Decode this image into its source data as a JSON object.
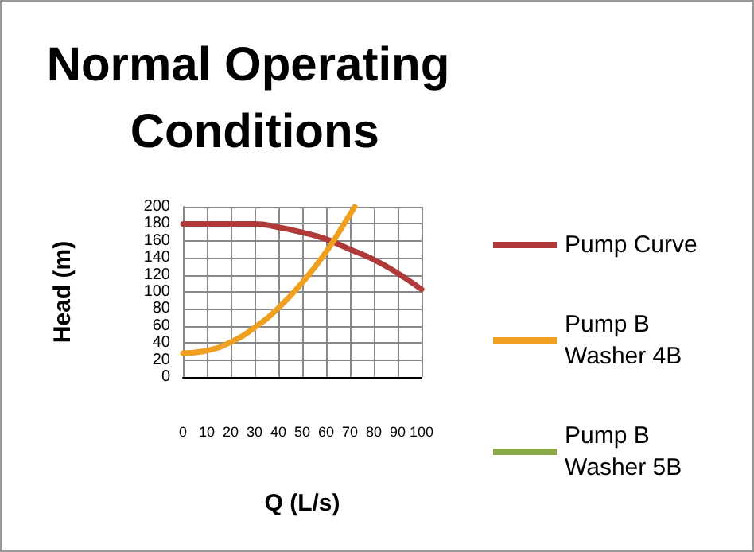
{
  "chart_data": {
    "type": "line",
    "title": "Normal Operating Conditions",
    "xlabel": "Q (L/s)",
    "ylabel": "Head (m)",
    "x": [
      0,
      10,
      20,
      30,
      40,
      50,
      60,
      70,
      80,
      90,
      100
    ],
    "series": [
      {
        "name": "Pump Curve",
        "color": "#b03a3a",
        "values": [
          180,
          180,
          180,
          180,
          176,
          170,
          162,
          150,
          138,
          122,
          103
        ]
      },
      {
        "name": "Pump B Washer 4B",
        "color": "#f0a020",
        "x": [
          0,
          10,
          20,
          30,
          40,
          50,
          60,
          70,
          72
        ],
        "values": [
          28,
          31,
          41,
          58,
          81,
          111,
          147,
          191,
          200
        ]
      },
      {
        "name": "Pump B Washer 5B",
        "color": "#8aaa4a",
        "values": [
          null,
          null,
          null,
          null,
          null,
          null,
          null,
          null,
          null,
          null,
          null
        ]
      }
    ],
    "xlim": [
      0,
      100
    ],
    "xticks": [
      0,
      10,
      20,
      30,
      40,
      50,
      60,
      70,
      80,
      90,
      100
    ],
    "ylim": [
      0,
      200
    ],
    "yticks": [
      0,
      20,
      40,
      60,
      80,
      100,
      120,
      140,
      160,
      180,
      200
    ],
    "grid": true,
    "legend": "right",
    "marker": "none",
    "line_style": "solid"
  }
}
